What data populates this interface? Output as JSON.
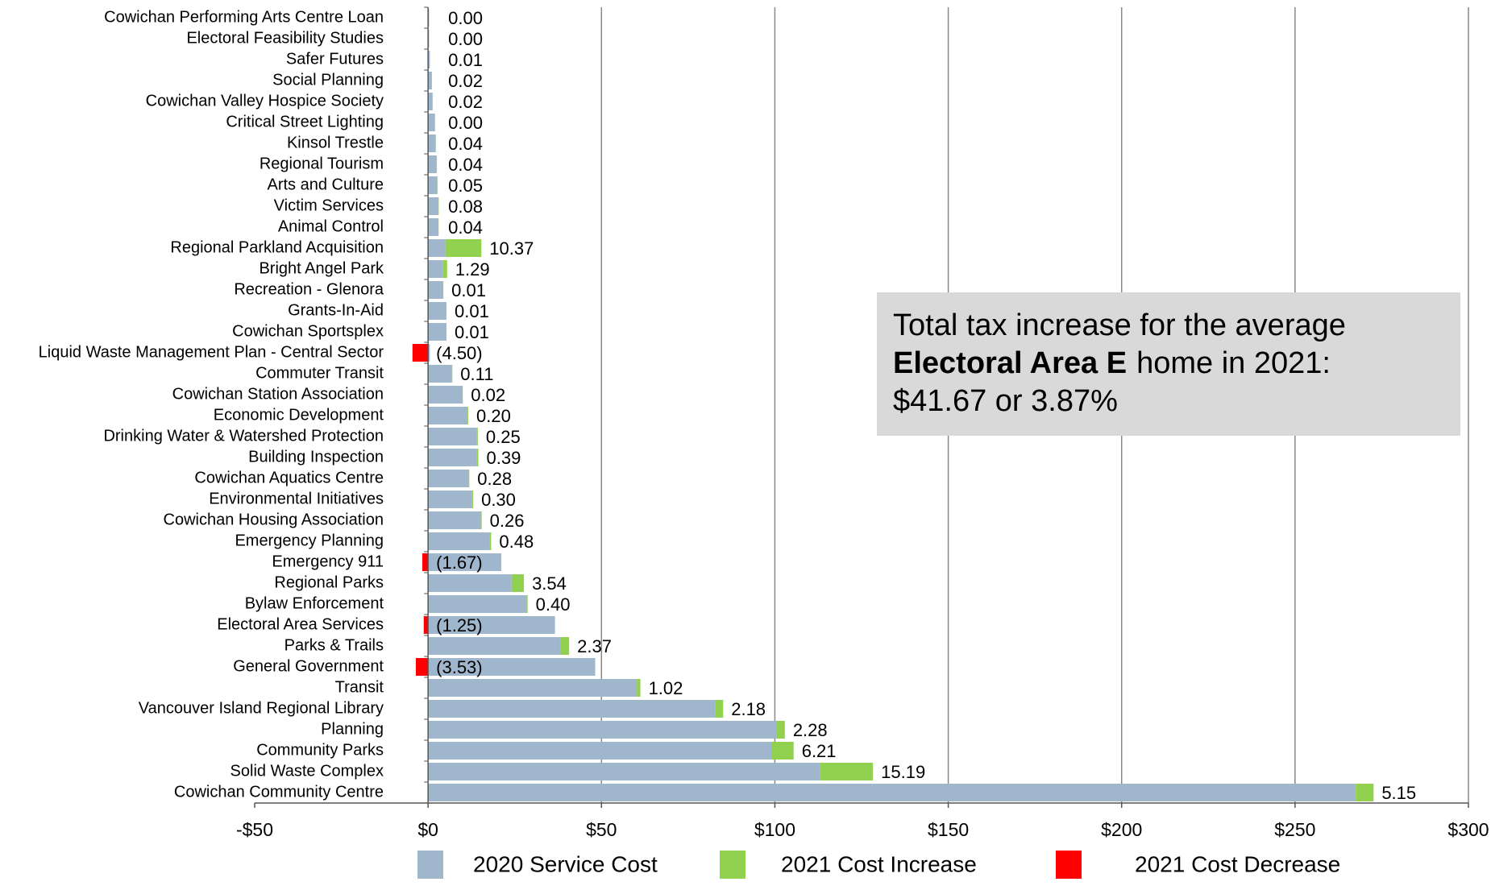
{
  "chart_data": {
    "type": "stacked-barh",
    "categories": [
      "Cowichan Performing Arts Centre Loan",
      "Electoral Feasibility Studies",
      "Safer Futures",
      "Social Planning",
      "Cowichan Valley Hospice Society",
      "Critical Street Lighting",
      "Kinsol Trestle",
      "Regional Tourism",
      "Arts and Culture",
      "Victim Services",
      "Animal Control",
      "Regional Parkland Acquisition",
      "Bright Angel Park",
      "Recreation - Glenora",
      "Grants-In-Aid",
      "Cowichan Sportsplex",
      "Liquid Waste Management Plan - Central Sector",
      "Commuter Transit",
      "Cowichan Station Association",
      "Economic Development",
      "Drinking Water & Watershed Protection",
      "Building Inspection",
      "Cowichan Aquatics Centre",
      "Environmental Initiatives",
      "Cowichan Housing Association",
      "Emergency Planning",
      "Emergency 911",
      "Regional Parks",
      "Bylaw Enforcement",
      "Electoral Area Services",
      "Parks & Trails",
      "General Government",
      "Transit",
      "Vancouver Island Regional Library",
      "Planning",
      "Community Parks",
      "Solid Waste Complex",
      "Cowichan Community Centre"
    ],
    "series": [
      {
        "name": "2020 Service Cost",
        "color": "#a0b6cc",
        "values": [
          0.3,
          0.3,
          0.5,
          1.1,
          1.3,
          2.0,
          2.2,
          2.5,
          2.7,
          3.0,
          3.0,
          5.0,
          4.2,
          4.4,
          5.3,
          5.3,
          0.5,
          6.9,
          10.0,
          11.4,
          14.1,
          14.1,
          11.6,
          12.7,
          15.2,
          17.7,
          21.1,
          24.1,
          28.3,
          36.6,
          38.3,
          48.2,
          60.2,
          82.9,
          100.6,
          99.2,
          113.1,
          267.5
        ]
      },
      {
        "name": "2021 Cost Increase",
        "color": "#92d050",
        "values": [
          0,
          0,
          0.01,
          0.02,
          0.02,
          0,
          0.04,
          0.04,
          0.05,
          0.08,
          0.04,
          10.37,
          1.29,
          0.01,
          0.01,
          0.01,
          null,
          0.11,
          0.02,
          0.2,
          0.25,
          0.39,
          0.28,
          0.3,
          0.26,
          0.48,
          null,
          3.54,
          0.4,
          null,
          2.37,
          null,
          1.02,
          2.18,
          2.28,
          6.21,
          15.19,
          5.15
        ],
        "value_labels": [
          "0.00",
          "0.00",
          "0.01",
          "0.02",
          "0.02",
          "0.00",
          "0.04",
          "0.04",
          "0.05",
          "0.08",
          "0.04",
          "10.37",
          "1.29",
          "0.01",
          "0.01",
          "0.01",
          null,
          "0.11",
          "0.02",
          "0.20",
          "0.25",
          "0.39",
          "0.28",
          "0.30",
          "0.26",
          "0.48",
          null,
          "3.54",
          "0.40",
          null,
          "2.37",
          null,
          "1.02",
          "2.18",
          "2.28",
          "6.21",
          "15.19",
          "5.15"
        ]
      },
      {
        "name": "2021 Cost Decrease",
        "color": "#ff0000",
        "values": [
          null,
          null,
          null,
          null,
          null,
          null,
          null,
          null,
          null,
          null,
          null,
          null,
          null,
          null,
          null,
          null,
          -4.5,
          null,
          null,
          null,
          null,
          null,
          null,
          null,
          null,
          null,
          -1.67,
          null,
          null,
          -1.25,
          null,
          -3.53,
          null,
          null,
          null,
          null,
          null,
          null
        ],
        "value_labels": [
          null,
          null,
          null,
          null,
          null,
          null,
          null,
          null,
          null,
          null,
          null,
          null,
          null,
          null,
          null,
          null,
          "(4.50)",
          null,
          null,
          null,
          null,
          null,
          null,
          null,
          null,
          null,
          "(1.67)",
          null,
          null,
          "(1.25)",
          null,
          "(3.53)",
          null,
          null,
          null,
          null,
          null,
          null
        ]
      }
    ],
    "xlim": [
      -50,
      300
    ],
    "xticks": [
      {
        "value": -50,
        "label": "-$50"
      },
      {
        "value": 0,
        "label": "$0"
      },
      {
        "value": 50,
        "label": "$50"
      },
      {
        "value": 100,
        "label": "$100"
      },
      {
        "value": 150,
        "label": "$150"
      },
      {
        "value": 200,
        "label": "$200"
      },
      {
        "value": 250,
        "label": "$250"
      },
      {
        "value": 300,
        "label": "$300"
      }
    ],
    "grid": true,
    "legend": "bottom",
    "annotation": {
      "line1": "Total tax increase for the average",
      "bold": "Electoral Area E",
      "line2": "home in 2021:",
      "line3": "$41.67 or 3.87%"
    }
  }
}
